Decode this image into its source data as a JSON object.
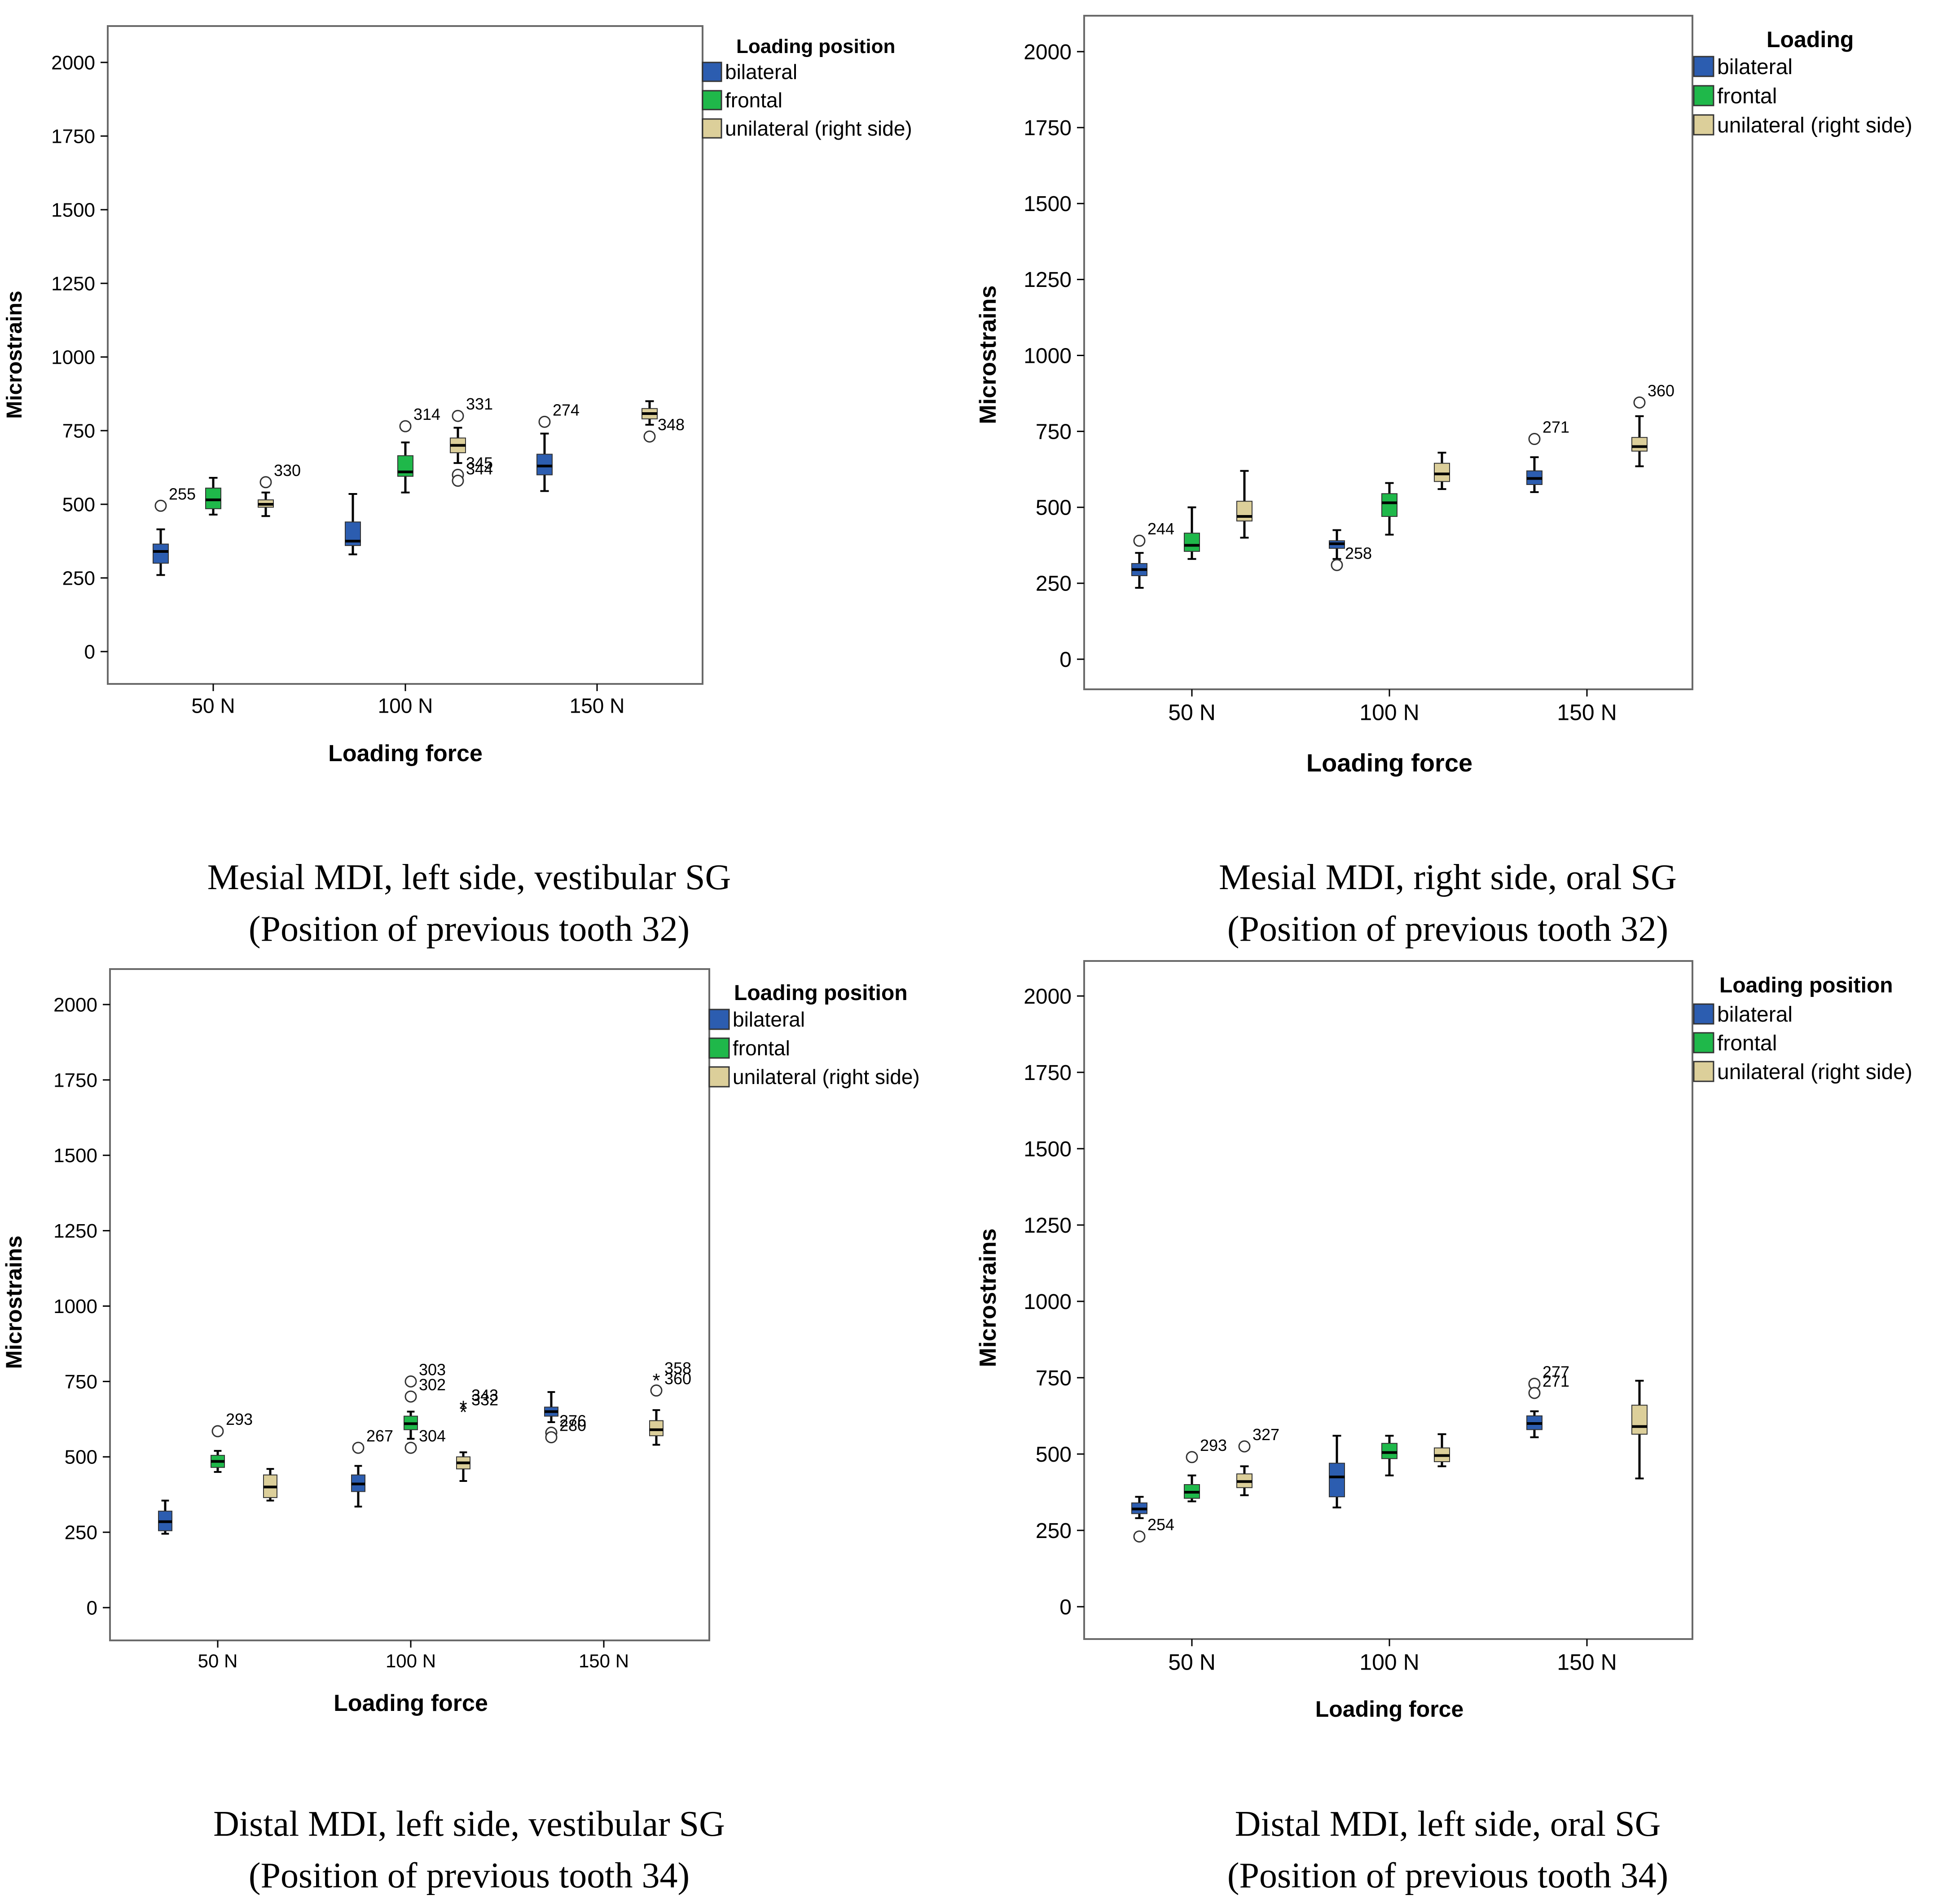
{
  "colors": {
    "bilateral": "#2c5db0",
    "frontal": "#1fb84a",
    "unilateral": "#dccf9a",
    "frame": "#6a6a6a",
    "whisker": "#000000"
  },
  "chart_data": [
    {
      "type": "boxplot",
      "panel": "top-left",
      "xlabel": "Loading force",
      "ylabel": "Microstrains",
      "categories": [
        "50 N",
        "100 N",
        "150 N"
      ],
      "ylim": [
        -100,
        2110
      ],
      "yticks": [
        0,
        250,
        500,
        750,
        1000,
        1250,
        1500,
        1750,
        2000
      ],
      "legend_title": "Loading position",
      "legend": [
        "bilateral",
        "frontal",
        "unilateral  (right side)"
      ],
      "caption": [
        "Mesial MDI, left side, vestibular SG",
        "(Position of previous tooth 32)"
      ],
      "series": [
        {
          "name": "bilateral",
          "boxes": [
            {
              "category": "50 N",
              "min": 260,
              "q1": 300,
              "median": 340,
              "q3": 365,
              "max": 415,
              "outliers": [
                {
                  "value": 495,
                  "label": "255",
                  "symbol": "circle"
                }
              ]
            },
            {
              "category": "100 N",
              "min": 330,
              "q1": 360,
              "median": 375,
              "q3": 440,
              "max": 535,
              "outliers": []
            },
            {
              "category": "150 N",
              "min": 545,
              "q1": 600,
              "median": 630,
              "q3": 670,
              "max": 740,
              "outliers": [
                {
                  "value": 780,
                  "label": "274",
                  "symbol": "circle"
                }
              ]
            }
          ]
        },
        {
          "name": "frontal",
          "boxes": [
            {
              "category": "50 N",
              "min": 465,
              "q1": 485,
              "median": 515,
              "q3": 555,
              "max": 590,
              "outliers": []
            },
            {
              "category": "100 N",
              "min": 540,
              "q1": 595,
              "median": 610,
              "q3": 665,
              "max": 710,
              "outliers": [
                {
                  "value": 765,
                  "label": "314",
                  "symbol": "circle"
                }
              ]
            },
            {
              "category": "150 N",
              "min": null,
              "q1": null,
              "median": null,
              "q3": null,
              "max": null,
              "outliers": []
            }
          ]
        },
        {
          "name": "unilateral  (right side)",
          "boxes": [
            {
              "category": "50 N",
              "min": 460,
              "q1": 490,
              "median": 500,
              "q3": 515,
              "max": 540,
              "outliers": [
                {
                  "value": 575,
                  "label": "330",
                  "symbol": "circle"
                }
              ]
            },
            {
              "category": "100 N",
              "min": 640,
              "q1": 675,
              "median": 700,
              "q3": 725,
              "max": 760,
              "outliers": [
                {
                  "value": 800,
                  "label": "331",
                  "symbol": "circle"
                },
                {
                  "value": 600,
                  "label": "345",
                  "symbol": "circle"
                },
                {
                  "value": 580,
                  "label": "344",
                  "symbol": "circle"
                }
              ]
            },
            {
              "category": "150 N",
              "min": 770,
              "q1": 790,
              "median": 808,
              "q3": 825,
              "max": 850,
              "outliers": [
                {
                  "value": 730,
                  "label": "348",
                  "symbol": "circle"
                }
              ]
            }
          ]
        }
      ]
    },
    {
      "type": "boxplot",
      "panel": "top-right",
      "xlabel": "Loading force",
      "ylabel": "Microstrains",
      "categories": [
        "50 N",
        "100 N",
        "150 N"
      ],
      "ylim": [
        -100,
        2110
      ],
      "yticks": [
        0,
        250,
        500,
        750,
        1000,
        1250,
        1500,
        1750,
        2000
      ],
      "legend_title": "Loading",
      "legend": [
        "bilateral",
        "frontal",
        "unilateral  (right side)"
      ],
      "caption": [
        "Mesial MDI, right side, oral SG",
        "(Position of previous tooth 32)"
      ],
      "series": [
        {
          "name": "bilateral",
          "boxes": [
            {
              "category": "50 N",
              "min": 235,
              "q1": 275,
              "median": 295,
              "q3": 315,
              "max": 350,
              "outliers": [
                {
                  "value": 390,
                  "label": "244",
                  "symbol": "circle"
                }
              ]
            },
            {
              "category": "100 N",
              "min": 330,
              "q1": 365,
              "median": 380,
              "q3": 390,
              "max": 425,
              "outliers": [
                {
                  "value": 310,
                  "label": "258",
                  "symbol": "circle"
                }
              ]
            },
            {
              "category": "150 N",
              "min": 550,
              "q1": 575,
              "median": 595,
              "q3": 620,
              "max": 665,
              "outliers": [
                {
                  "value": 725,
                  "label": "271",
                  "symbol": "circle"
                }
              ]
            }
          ]
        },
        {
          "name": "frontal",
          "boxes": [
            {
              "category": "50 N",
              "min": 330,
              "q1": 355,
              "median": 375,
              "q3": 415,
              "max": 500,
              "outliers": []
            },
            {
              "category": "100 N",
              "min": 410,
              "q1": 470,
              "median": 515,
              "q3": 545,
              "max": 580,
              "outliers": []
            },
            {
              "category": "150 N",
              "min": null,
              "q1": null,
              "median": null,
              "q3": null,
              "max": null,
              "outliers": []
            }
          ]
        },
        {
          "name": "unilateral  (right side)",
          "boxes": [
            {
              "category": "50 N",
              "min": 400,
              "q1": 455,
              "median": 470,
              "q3": 520,
              "max": 620,
              "outliers": []
            },
            {
              "category": "100 N",
              "min": 560,
              "q1": 585,
              "median": 610,
              "q3": 645,
              "max": 680,
              "outliers": []
            },
            {
              "category": "150 N",
              "min": 635,
              "q1": 685,
              "median": 700,
              "q3": 730,
              "max": 800,
              "outliers": [
                {
                  "value": 845,
                  "label": "360",
                  "symbol": "circle"
                }
              ]
            }
          ]
        }
      ]
    },
    {
      "type": "boxplot",
      "panel": "bottom-left",
      "xlabel": "Loading force",
      "ylabel": "Microstrains",
      "categories": [
        "50 N",
        "100 N",
        "150 N"
      ],
      "ylim": [
        -100,
        2110
      ],
      "yticks": [
        0,
        250,
        500,
        750,
        1000,
        1250,
        1500,
        1750,
        2000
      ],
      "legend_title": "Loading position",
      "legend": [
        "bilateral",
        "frontal",
        "unilateral  (right side)"
      ],
      "caption": [
        "Distal MDI, left side, vestibular SG",
        "(Position of previous tooth 34)"
      ],
      "series": [
        {
          "name": "bilateral",
          "boxes": [
            {
              "category": "50 N",
              "min": 245,
              "q1": 255,
              "median": 285,
              "q3": 320,
              "max": 355,
              "outliers": []
            },
            {
              "category": "100 N",
              "min": 335,
              "q1": 385,
              "median": 410,
              "q3": 440,
              "max": 470,
              "outliers": [
                {
                  "value": 530,
                  "label": "267",
                  "symbol": "circle"
                }
              ]
            },
            {
              "category": "150 N",
              "min": 615,
              "q1": 635,
              "median": 650,
              "q3": 665,
              "max": 715,
              "outliers": [
                {
                  "value": 580,
                  "label": "276",
                  "symbol": "circle"
                },
                {
                  "value": 565,
                  "label": "280",
                  "symbol": "circle"
                }
              ]
            }
          ]
        },
        {
          "name": "frontal",
          "boxes": [
            {
              "category": "50 N",
              "min": 450,
              "q1": 465,
              "median": 485,
              "q3": 505,
              "max": 520,
              "outliers": [
                {
                  "value": 585,
                  "label": "293",
                  "symbol": "circle"
                }
              ]
            },
            {
              "category": "100 N",
              "min": 560,
              "q1": 590,
              "median": 610,
              "q3": 635,
              "max": 650,
              "outliers": [
                {
                  "value": 750,
                  "label": "303",
                  "symbol": "circle"
                },
                {
                  "value": 700,
                  "label": "302",
                  "symbol": "circle"
                },
                {
                  "value": 530,
                  "label": "304",
                  "symbol": "circle"
                }
              ]
            },
            {
              "category": "150 N",
              "min": null,
              "q1": null,
              "median": null,
              "q3": null,
              "max": null,
              "outliers": []
            }
          ]
        },
        {
          "name": "unilateral  (right side)",
          "boxes": [
            {
              "category": "50 N",
              "min": 355,
              "q1": 365,
              "median": 400,
              "q3": 440,
              "max": 460,
              "outliers": []
            },
            {
              "category": "100 N",
              "min": 420,
              "q1": 460,
              "median": 480,
              "q3": 500,
              "max": 515,
              "outliers": [
                {
                  "value": 665,
                  "label": "343",
                  "symbol": "star"
                },
                {
                  "value": 650,
                  "label": "332",
                  "symbol": "star"
                }
              ]
            },
            {
              "category": "150 N",
              "min": 540,
              "q1": 570,
              "median": 590,
              "q3": 620,
              "max": 655,
              "outliers": [
                {
                  "value": 755,
                  "label": "358",
                  "symbol": "star"
                },
                {
                  "value": 720,
                  "label": "360",
                  "symbol": "circle"
                }
              ]
            }
          ]
        }
      ]
    },
    {
      "type": "boxplot",
      "panel": "bottom-right",
      "xlabel": "Loading force",
      "ylabel": "Microstrains",
      "categories": [
        "50 N",
        "100 N",
        "150 N"
      ],
      "ylim": [
        -100,
        2110
      ],
      "yticks": [
        0,
        250,
        500,
        750,
        1000,
        1250,
        1500,
        1750,
        2000
      ],
      "legend_title": "Loading position",
      "legend": [
        "bilateral",
        "frontal",
        "unilateral  (right side)"
      ],
      "caption": [
        "Distal MDI, left side, oral SG",
        "(Position of previous tooth 34)"
      ],
      "series": [
        {
          "name": "bilateral",
          "boxes": [
            {
              "category": "50 N",
              "min": 290,
              "q1": 305,
              "median": 320,
              "q3": 340,
              "max": 360,
              "outliers": [
                {
                  "value": 230,
                  "label": "254",
                  "symbol": "circle"
                }
              ]
            },
            {
              "category": "100 N",
              "min": 325,
              "q1": 360,
              "median": 425,
              "q3": 470,
              "max": 560,
              "outliers": []
            },
            {
              "category": "150 N",
              "min": 555,
              "q1": 580,
              "median": 600,
              "q3": 625,
              "max": 640,
              "outliers": [
                {
                  "value": 730,
                  "label": "277",
                  "symbol": "circle"
                },
                {
                  "value": 700,
                  "label": "271",
                  "symbol": "circle"
                }
              ]
            }
          ]
        },
        {
          "name": "frontal",
          "boxes": [
            {
              "category": "50 N",
              "min": 345,
              "q1": 355,
              "median": 375,
              "q3": 400,
              "max": 430,
              "outliers": [
                {
                  "value": 490,
                  "label": "293",
                  "symbol": "circle"
                }
              ]
            },
            {
              "category": "100 N",
              "min": 430,
              "q1": 485,
              "median": 505,
              "q3": 535,
              "max": 560,
              "outliers": []
            },
            {
              "category": "150 N",
              "min": null,
              "q1": null,
              "median": null,
              "q3": null,
              "max": null,
              "outliers": []
            }
          ]
        },
        {
          "name": "unilateral  (right side)",
          "boxes": [
            {
              "category": "50 N",
              "min": 365,
              "q1": 390,
              "median": 410,
              "q3": 435,
              "max": 460,
              "outliers": [
                {
                  "value": 525,
                  "label": "327",
                  "symbol": "circle"
                }
              ]
            },
            {
              "category": "100 N",
              "min": 460,
              "q1": 475,
              "median": 495,
              "q3": 520,
              "max": 565,
              "outliers": []
            },
            {
              "category": "150 N",
              "min": 420,
              "q1": 565,
              "median": 590,
              "q3": 660,
              "max": 740,
              "outliers": []
            }
          ]
        }
      ]
    }
  ]
}
